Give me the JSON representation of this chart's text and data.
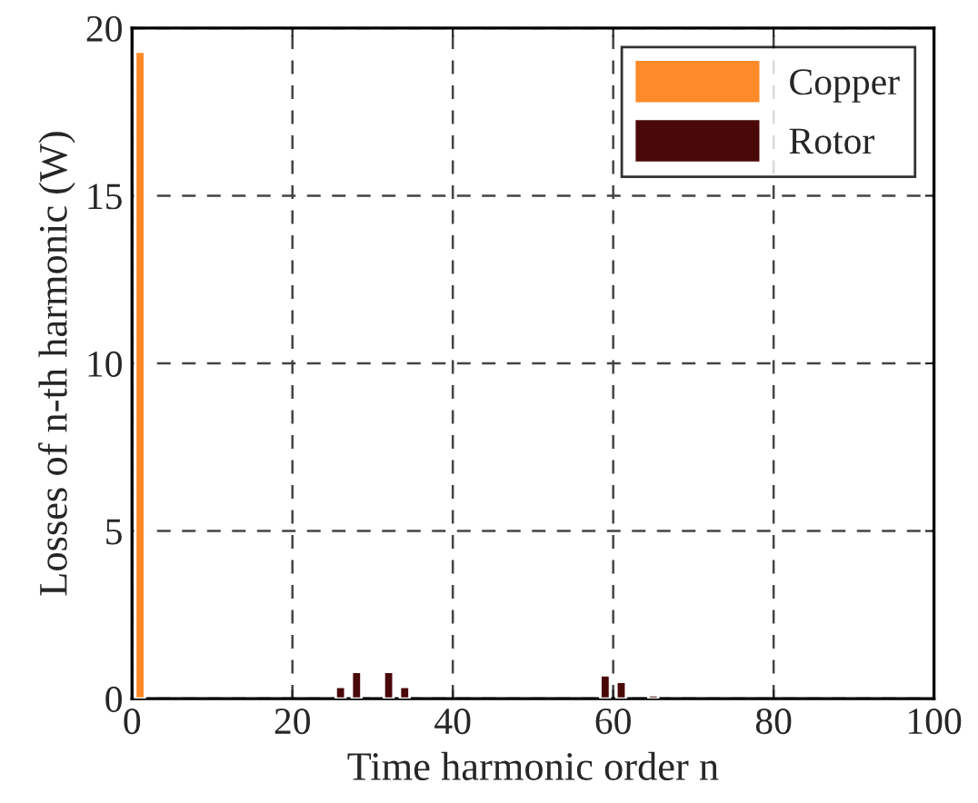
{
  "chart_data": {
    "type": "bar",
    "xlabel": "Time harmonic order n",
    "ylabel": "Losses of n-th harmonic (W)",
    "series": [
      {
        "name": "Copper",
        "color": "#ff8a2a",
        "x": [
          1
        ],
        "values": [
          19.3
        ]
      },
      {
        "name": "Rotor",
        "color": "#4a0808",
        "x": [
          26,
          28,
          32,
          34,
          59,
          61,
          65
        ],
        "values": [
          0.35,
          0.8,
          0.8,
          0.35,
          0.7,
          0.5,
          0.1
        ]
      }
    ],
    "xlim": [
      0,
      100
    ],
    "xticks": [
      0,
      20,
      40,
      60,
      80,
      100
    ],
    "ylim": [
      0,
      20
    ],
    "yticks": [
      0,
      5,
      10,
      15,
      20
    ],
    "grid": true,
    "legend": "top right"
  }
}
